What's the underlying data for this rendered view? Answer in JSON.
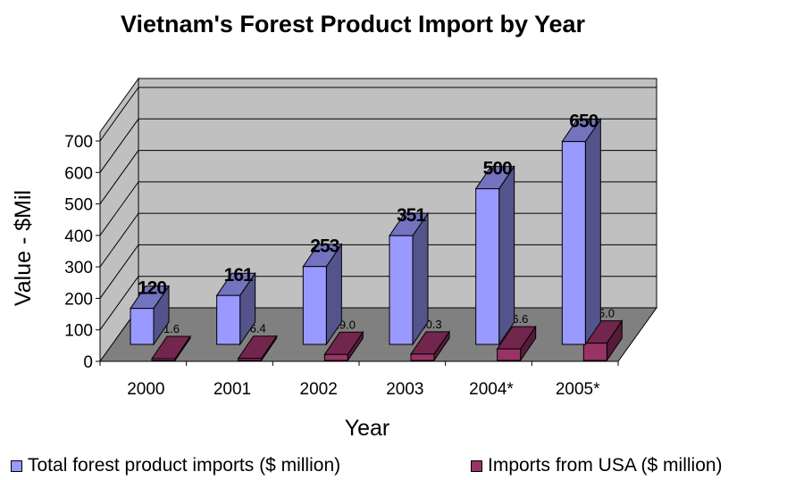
{
  "chart_data": {
    "type": "bar",
    "title": "Vietnam's Forest Product Import by Year",
    "xlabel": "Year",
    "ylabel": "Value - $Mil",
    "categories": [
      "2000",
      "2001",
      "2002",
      "2003",
      "2004*",
      "2005*"
    ],
    "ylim": [
      0,
      700
    ],
    "yticks": [
      "0",
      "100",
      "200",
      "300",
      "400",
      "500",
      "600",
      "700"
    ],
    "grid": true,
    "legend_position": "bottom",
    "series": [
      {
        "name": "Total forest product imports ($ million)",
        "values": [
          120,
          161,
          253,
          351,
          500,
          650
        ],
        "labels": [
          "120",
          "161",
          "253",
          "351",
          "500",
          "650"
        ],
        "color": "#9999ff"
      },
      {
        "name": "Imports from USA ($ million)",
        "values": [
          1.6,
          6.4,
          19.0,
          20.3,
          36.6,
          55.0
        ],
        "labels": [
          "1.6",
          "6.4",
          "19.0",
          "20.3",
          "36.6",
          "55.0"
        ],
        "color": "#993366"
      }
    ]
  }
}
